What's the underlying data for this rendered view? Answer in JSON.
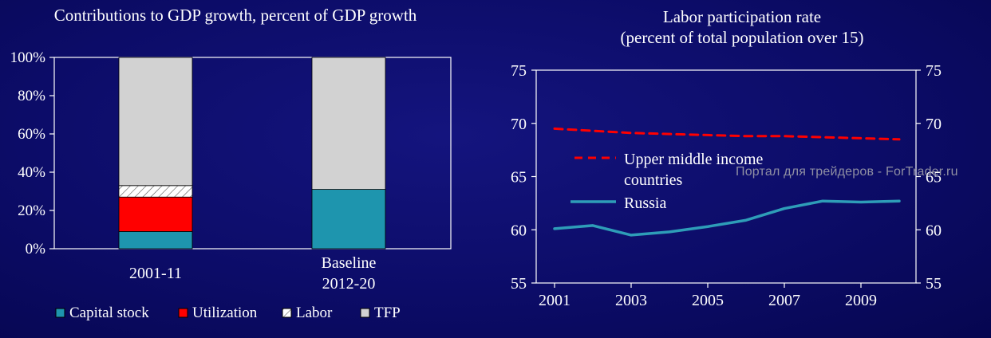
{
  "slide": {
    "background_color": "#0c0c68",
    "text_color": "#ffffff"
  },
  "watermark": {
    "text": "Портал для трейдеров - ForTrader.ru",
    "color": "#9b9ba8"
  },
  "chart_data": [
    {
      "type": "bar",
      "stacked": true,
      "title": "Contributions to GDP growth, percent of GDP growth",
      "categories": [
        "2001-11",
        "Baseline\n2012-20"
      ],
      "series": [
        {
          "name": "Capital stock",
          "color": "#1E95AE",
          "values": [
            9,
            31
          ]
        },
        {
          "name": "Utilization",
          "color": "#FF0000",
          "values": [
            18,
            0
          ]
        },
        {
          "name": "Labor",
          "color": "hatch",
          "values": [
            6,
            0
          ]
        },
        {
          "name": "TFP",
          "color": "#D2D2D2",
          "values": [
            67,
            69
          ]
        }
      ],
      "ylim": [
        0,
        100
      ],
      "yticks": [
        "0%",
        "20%",
        "40%",
        "60%",
        "80%",
        "100%"
      ],
      "grid": false,
      "legend_position": "bottom"
    },
    {
      "type": "line",
      "title": "Labor participation rate",
      "subtitle": "(percent of total population over 15)",
      "x": [
        2001,
        2002,
        2003,
        2004,
        2005,
        2006,
        2007,
        2008,
        2009,
        2010
      ],
      "xticks": [
        2001,
        2003,
        2005,
        2007,
        2009
      ],
      "ylim": [
        55,
        75
      ],
      "yticks": [
        55,
        60,
        65,
        70,
        75
      ],
      "grid": false,
      "legend_position": "inside-left",
      "series": [
        {
          "name": "Upper middle income countries",
          "label_lines": [
            "Upper middle income",
            "countries"
          ],
          "color": "#FF0000",
          "dash": true,
          "values": [
            69.5,
            69.3,
            69.1,
            69.0,
            68.9,
            68.8,
            68.8,
            68.7,
            68.6,
            68.5
          ]
        },
        {
          "name": "Russia",
          "label_lines": [
            "Russia"
          ],
          "color": "#2E9DB8",
          "dash": false,
          "values": [
            60.1,
            60.4,
            59.5,
            59.8,
            60.3,
            60.9,
            62.0,
            62.7,
            62.6,
            62.7
          ]
        }
      ]
    }
  ]
}
